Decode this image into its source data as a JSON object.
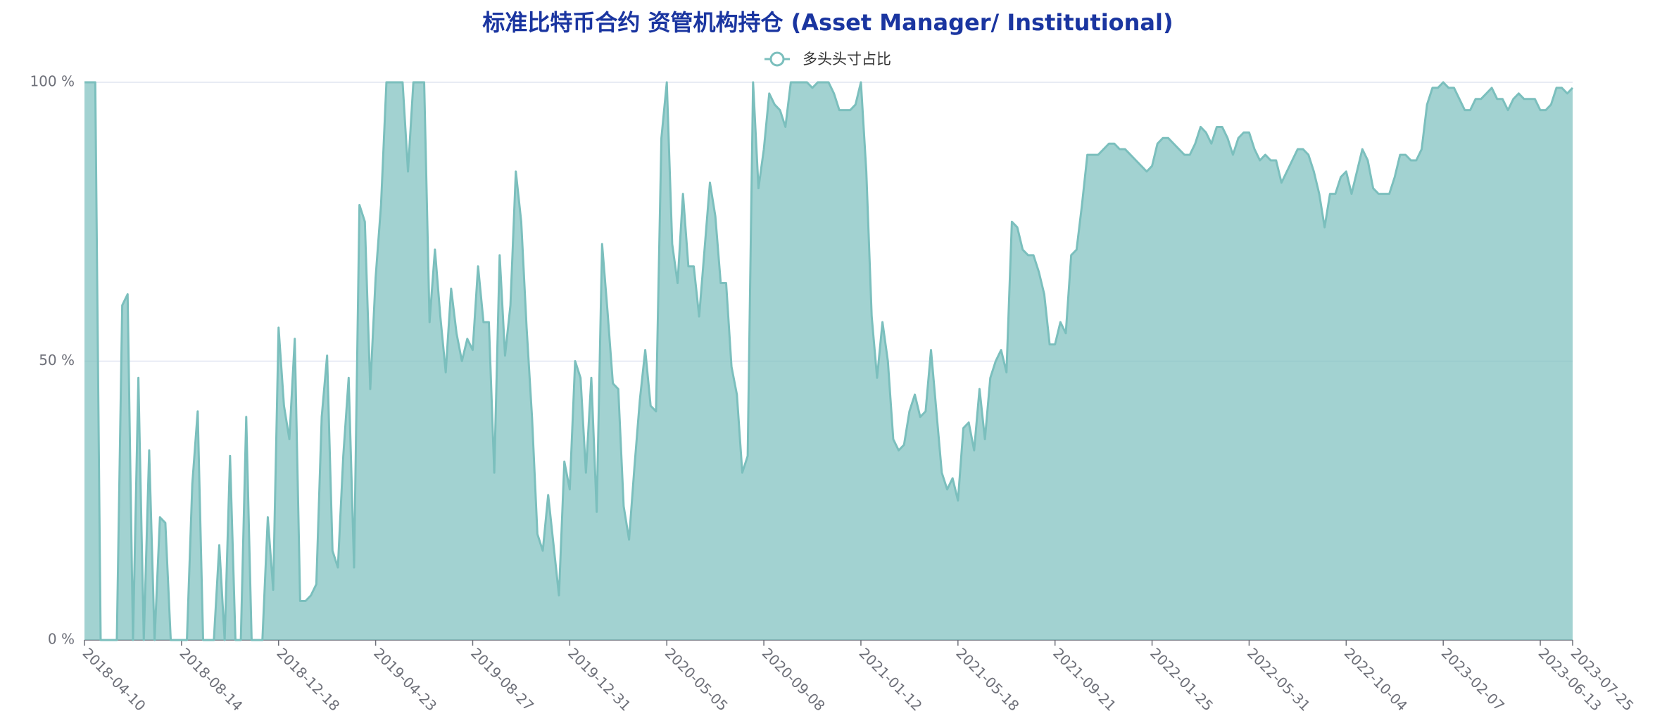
{
  "chart_data": {
    "type": "area",
    "title": "标准比特币合约 资管机构持仓 (Asset Manager/ Institutional)",
    "xlim": [
      "2018-04-10",
      "2023-07-25"
    ],
    "xticks": [
      "2018-04-10",
      "2018-08-14",
      "2018-12-18",
      "2019-04-23",
      "2019-08-27",
      "2019-12-31",
      "2020-05-05",
      "2020-09-08",
      "2021-01-12",
      "2021-05-18",
      "2021-09-21",
      "2022-01-25",
      "2022-05-31",
      "2022-10-04",
      "2023-02-07",
      "2023-06-13",
      "2023-07-25"
    ],
    "ylim": [
      0,
      100
    ],
    "yticks": [
      {
        "value": 0,
        "label": "0 %"
      },
      {
        "value": 50,
        "label": "50 %"
      },
      {
        "value": 100,
        "label": "100 %"
      }
    ],
    "grid": true,
    "x": [
      "2018-04-10",
      "2018-04-17",
      "2018-04-24",
      "2018-05-01",
      "2018-05-08",
      "2018-05-15",
      "2018-05-22",
      "2018-05-29",
      "2018-06-05",
      "2018-06-12",
      "2018-06-19",
      "2018-06-26",
      "2018-07-03",
      "2018-07-10",
      "2018-07-17",
      "2018-07-24",
      "2018-07-31",
      "2018-08-07",
      "2018-08-14",
      "2018-08-21",
      "2018-08-28",
      "2018-09-04",
      "2018-09-11",
      "2018-09-18",
      "2018-09-25",
      "2018-10-02",
      "2018-10-09",
      "2018-10-16",
      "2018-10-23",
      "2018-10-30",
      "2018-11-06",
      "2018-11-13",
      "2018-11-20",
      "2018-11-27",
      "2018-12-04",
      "2018-12-11",
      "2018-12-18",
      "2018-12-25",
      "2019-01-01",
      "2019-01-08",
      "2019-01-15",
      "2019-01-22",
      "2019-01-29",
      "2019-02-05",
      "2019-02-12",
      "2019-02-19",
      "2019-02-26",
      "2019-03-05",
      "2019-03-12",
      "2019-03-19",
      "2019-03-26",
      "2019-04-02",
      "2019-04-09",
      "2019-04-16",
      "2019-04-23",
      "2019-04-30",
      "2019-05-07",
      "2019-05-14",
      "2019-05-21",
      "2019-05-28",
      "2019-06-04",
      "2019-06-11",
      "2019-06-18",
      "2019-06-25",
      "2019-07-02",
      "2019-07-09",
      "2019-07-16",
      "2019-07-23",
      "2019-07-30",
      "2019-08-06",
      "2019-08-13",
      "2019-08-20",
      "2019-08-27",
      "2019-09-03",
      "2019-09-10",
      "2019-09-17",
      "2019-09-24",
      "2019-10-01",
      "2019-10-08",
      "2019-10-15",
      "2019-10-22",
      "2019-10-29",
      "2019-11-05",
      "2019-11-12",
      "2019-11-19",
      "2019-11-26",
      "2019-12-03",
      "2019-12-10",
      "2019-12-17",
      "2019-12-24",
      "2019-12-31",
      "2020-01-07",
      "2020-01-14",
      "2020-01-21",
      "2020-01-28",
      "2020-02-04",
      "2020-02-11",
      "2020-02-18",
      "2020-02-25",
      "2020-03-03",
      "2020-03-10",
      "2020-03-17",
      "2020-03-24",
      "2020-03-31",
      "2020-04-07",
      "2020-04-14",
      "2020-04-21",
      "2020-04-28",
      "2020-05-05",
      "2020-05-12",
      "2020-05-19",
      "2020-05-26",
      "2020-06-02",
      "2020-06-09",
      "2020-06-16",
      "2020-06-23",
      "2020-06-30",
      "2020-07-07",
      "2020-07-14",
      "2020-07-21",
      "2020-07-28",
      "2020-08-04",
      "2020-08-11",
      "2020-08-18",
      "2020-08-25",
      "2020-09-01",
      "2020-09-08",
      "2020-09-15",
      "2020-09-22",
      "2020-09-29",
      "2020-10-06",
      "2020-10-13",
      "2020-10-20",
      "2020-10-27",
      "2020-11-03",
      "2020-11-10",
      "2020-11-17",
      "2020-11-24",
      "2020-12-01",
      "2020-12-08",
      "2020-12-15",
      "2020-12-22",
      "2020-12-29",
      "2021-01-05",
      "2021-01-12",
      "2021-01-19",
      "2021-01-26",
      "2021-02-02",
      "2021-02-09",
      "2021-02-16",
      "2021-02-23",
      "2021-03-02",
      "2021-03-09",
      "2021-03-16",
      "2021-03-23",
      "2021-03-30",
      "2021-04-06",
      "2021-04-13",
      "2021-04-20",
      "2021-04-27",
      "2021-05-04",
      "2021-05-11",
      "2021-05-18",
      "2021-05-25",
      "2021-06-01",
      "2021-06-08",
      "2021-06-15",
      "2021-06-22",
      "2021-06-29",
      "2021-07-06",
      "2021-07-13",
      "2021-07-20",
      "2021-07-27",
      "2021-08-03",
      "2021-08-10",
      "2021-08-17",
      "2021-08-24",
      "2021-08-31",
      "2021-09-07",
      "2021-09-14",
      "2021-09-21",
      "2021-09-28",
      "2021-10-05",
      "2021-10-12",
      "2021-10-19",
      "2021-10-26",
      "2021-11-02",
      "2021-11-09",
      "2021-11-16",
      "2021-11-23",
      "2021-11-30",
      "2021-12-07",
      "2021-12-14",
      "2021-12-21",
      "2021-12-28",
      "2022-01-04",
      "2022-01-11",
      "2022-01-18",
      "2022-01-25",
      "2022-02-01",
      "2022-02-08",
      "2022-02-15",
      "2022-02-22",
      "2022-03-01",
      "2022-03-08",
      "2022-03-15",
      "2022-03-22",
      "2022-03-29",
      "2022-04-05",
      "2022-04-12",
      "2022-04-19",
      "2022-04-26",
      "2022-05-03",
      "2022-05-10",
      "2022-05-17",
      "2022-05-24",
      "2022-05-31",
      "2022-06-07",
      "2022-06-14",
      "2022-06-21",
      "2022-06-28",
      "2022-07-05",
      "2022-07-12",
      "2022-07-19",
      "2022-07-26",
      "2022-08-02",
      "2022-08-09",
      "2022-08-16",
      "2022-08-23",
      "2022-08-30",
      "2022-09-06",
      "2022-09-13",
      "2022-09-20",
      "2022-09-27",
      "2022-10-04",
      "2022-10-11",
      "2022-10-18",
      "2022-10-25",
      "2022-11-01",
      "2022-11-08",
      "2022-11-15",
      "2022-11-22",
      "2022-11-29",
      "2022-12-06",
      "2022-12-13",
      "2022-12-20",
      "2022-12-27",
      "2023-01-03",
      "2023-01-10",
      "2023-01-17",
      "2023-01-24",
      "2023-01-31",
      "2023-02-07",
      "2023-02-14",
      "2023-02-21",
      "2023-02-28",
      "2023-03-07",
      "2023-03-14",
      "2023-03-21",
      "2023-03-28",
      "2023-04-04",
      "2023-04-11",
      "2023-04-18",
      "2023-04-25",
      "2023-05-02",
      "2023-05-09",
      "2023-05-16",
      "2023-05-23",
      "2023-05-30",
      "2023-06-06",
      "2023-06-13",
      "2023-06-20",
      "2023-06-27",
      "2023-07-04",
      "2023-07-11",
      "2023-07-18",
      "2023-07-25"
    ],
    "series": [
      {
        "name": "多头头寸占比",
        "color": "#7bbfbd",
        "values": [
          100,
          100,
          100,
          0,
          0,
          0,
          0,
          60,
          62,
          0,
          47,
          0,
          34,
          0,
          22,
          21,
          0,
          0,
          0,
          0,
          28,
          41,
          0,
          0,
          0,
          17,
          0,
          33,
          0,
          0,
          40,
          0,
          0,
          0,
          22,
          9,
          56,
          42,
          36,
          54,
          7,
          7,
          8,
          10,
          40,
          51,
          16,
          13,
          33,
          47,
          13,
          78,
          75,
          45,
          65,
          78,
          100,
          100,
          100,
          100,
          84,
          100,
          100,
          100,
          57,
          70,
          58,
          48,
          63,
          55,
          50,
          54,
          52,
          67,
          57,
          57,
          30,
          69,
          51,
          60,
          84,
          75,
          56,
          40,
          19,
          16,
          26,
          17,
          8,
          32,
          27,
          50,
          47,
          30,
          47,
          23,
          71,
          59,
          46,
          45,
          24,
          18,
          31,
          43,
          52,
          42,
          41,
          90,
          100,
          71,
          64,
          80,
          67,
          67,
          58,
          70,
          82,
          76,
          64,
          64,
          49,
          44,
          30,
          33,
          100,
          81,
          88,
          98,
          96,
          95,
          92,
          100,
          100,
          100,
          100,
          99,
          100,
          100,
          100,
          98,
          95,
          95,
          95,
          96,
          100,
          84,
          58,
          47,
          57,
          50,
          36,
          34,
          35,
          41,
          44,
          40,
          41,
          52,
          41,
          30,
          27,
          29,
          25,
          38,
          39,
          34,
          45,
          36,
          47,
          50,
          52,
          48,
          75,
          74,
          70,
          69,
          69,
          66,
          62,
          53,
          53,
          57,
          55,
          69,
          70,
          78,
          87,
          87,
          87,
          88,
          89,
          89,
          88,
          88,
          87,
          86,
          85,
          84,
          85,
          89,
          90,
          90,
          89,
          88,
          87,
          87,
          89,
          92,
          91,
          89,
          92,
          92,
          90,
          87,
          90,
          91,
          91,
          88,
          86,
          87,
          86,
          86,
          82,
          84,
          86,
          88,
          88,
          87,
          84,
          80,
          74,
          80,
          80,
          83,
          84,
          80,
          84,
          88,
          86,
          81,
          80,
          80,
          80,
          83,
          87,
          87,
          86,
          86,
          88,
          96,
          99,
          99,
          100,
          99,
          99,
          97,
          95,
          95,
          97,
          97,
          98,
          99,
          97,
          97,
          95,
          97,
          98,
          97,
          97,
          97,
          95,
          95,
          96,
          99,
          99,
          98,
          99
        ]
      }
    ]
  }
}
